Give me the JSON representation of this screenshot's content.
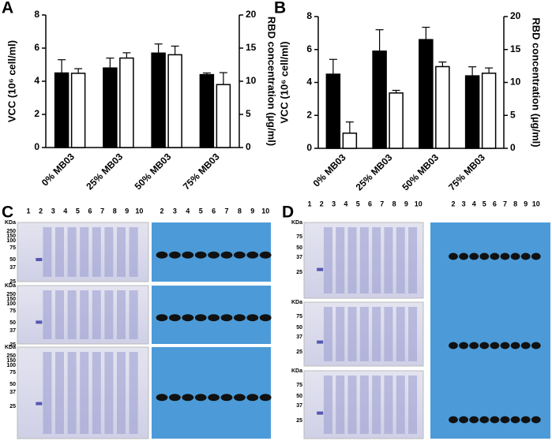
{
  "chart_data": [
    {
      "type": "bar",
      "panel_label": "A",
      "categories": [
        "0% MB03",
        "25% MB03",
        "50% MB03",
        "75% MB03"
      ],
      "ylabel": "VCC (10⁶ cell/ml)",
      "y2label": "RBD concentration (µg/ml)",
      "ylim": [
        0,
        8
      ],
      "yticks": [
        0,
        2,
        4,
        6,
        8
      ],
      "y2lim": [
        0,
        20
      ],
      "y2ticks": [
        0,
        5,
        10,
        15,
        20
      ],
      "series": [
        {
          "color": "#000000",
          "values": [
            4.5,
            4.8,
            5.7,
            4.4
          ],
          "errors": [
            0.8,
            0.6,
            0.55,
            0.1
          ]
        },
        {
          "color": "#ffffff",
          "axis": "y2",
          "values": [
            11.2,
            13.5,
            14.0,
            9.5
          ],
          "errors": [
            0.7,
            0.8,
            1.3,
            1.8
          ]
        }
      ]
    },
    {
      "type": "bar",
      "panel_label": "B",
      "categories": [
        "0% MB03",
        "25% MB03",
        "50% MB03",
        "75% MB03"
      ],
      "ylabel": "VCC (10⁶ cell/ml)",
      "y2label": "RBD concentration (µg/ml)",
      "ylim": [
        0,
        8
      ],
      "yticks": [
        0,
        2,
        4,
        6,
        8
      ],
      "y2lim": [
        0,
        20
      ],
      "y2ticks": [
        0,
        5,
        10,
        15,
        20
      ],
      "series": [
        {
          "color": "#000000",
          "values": [
            4.5,
            5.9,
            6.6,
            4.4
          ],
          "errors": [
            0.9,
            1.3,
            0.75,
            0.55
          ]
        },
        {
          "color": "#ffffff",
          "axis": "y2",
          "values": [
            2.3,
            8.4,
            12.4,
            11.4
          ],
          "errors": [
            1.7,
            0.4,
            0.7,
            0.8
          ]
        }
      ]
    }
  ],
  "gel_panels": [
    {
      "label": "C",
      "lanes_left": [
        "1",
        "2",
        "3",
        "4",
        "5",
        "6",
        "7",
        "8",
        "9",
        "10"
      ],
      "lanes_right": [
        "2",
        "3",
        "4",
        "5",
        "6",
        "7",
        "8",
        "9",
        "10"
      ],
      "kda_blocks": [
        [
          "KDa",
          "250",
          "150",
          "100",
          "75",
          "50",
          "37",
          "25"
        ],
        [
          "KDa",
          "250",
          "150",
          "100",
          "75",
          "50",
          "37",
          "25"
        ],
        [
          "KDa",
          "250",
          "150",
          "100",
          "75",
          "50",
          "37",
          "25"
        ]
      ]
    },
    {
      "label": "D",
      "lanes_left": [
        "1",
        "2",
        "3",
        "4",
        "5",
        "6",
        "7",
        "8",
        "9",
        "10"
      ],
      "lanes_right": [
        "2",
        "3",
        "4",
        "5",
        "6",
        "7",
        "8",
        "9",
        "10"
      ],
      "kda_blocks": [
        [
          "KDa",
          "75",
          "50",
          "37",
          "25"
        ],
        [
          "KDa",
          "75",
          "50",
          "37",
          "25"
        ],
        [
          "KDa",
          "75",
          "50",
          "37",
          "25"
        ]
      ]
    }
  ]
}
